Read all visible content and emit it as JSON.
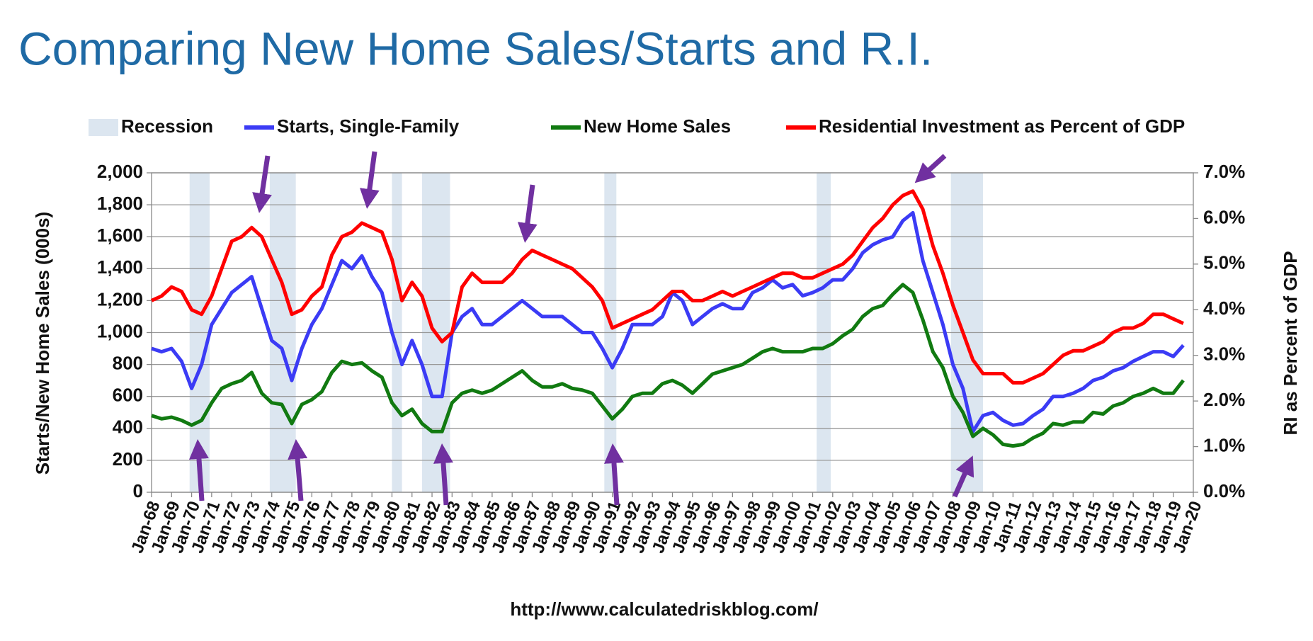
{
  "chart_data": {
    "type": "line",
    "title": "Comparing New Home Sales/Starts and R.I.",
    "ylabel": "Starts/New Home Sales (000s)",
    "y2label": "RI as Percent of GDP",
    "source": "http://www.calculatedriskblog.com/",
    "recession_name": "Recession",
    "recession_color": "#dce6f0",
    "recessions": [
      [
        1969.9,
        1970.9
      ],
      [
        1973.9,
        1975.2
      ],
      [
        1980.0,
        1980.5
      ],
      [
        1981.5,
        1982.9
      ],
      [
        1990.6,
        1991.2
      ],
      [
        2001.2,
        2001.9
      ],
      [
        2007.9,
        2009.5
      ]
    ],
    "xlim": [
      1968,
      2020
    ],
    "xticks": [
      {
        "value": 1968,
        "label": "Jan-68"
      },
      {
        "value": 1969,
        "label": "Jan-69"
      },
      {
        "value": 1970,
        "label": "Jan-70"
      },
      {
        "value": 1971,
        "label": "Jan-71"
      },
      {
        "value": 1972,
        "label": "Jan-72"
      },
      {
        "value": 1973,
        "label": "Jan-73"
      },
      {
        "value": 1974,
        "label": "Jan-74"
      },
      {
        "value": 1975,
        "label": "Jan-75"
      },
      {
        "value": 1976,
        "label": "Jan-76"
      },
      {
        "value": 1977,
        "label": "Jan-77"
      },
      {
        "value": 1978,
        "label": "Jan-78"
      },
      {
        "value": 1979,
        "label": "Jan-79"
      },
      {
        "value": 1980,
        "label": "Jan-80"
      },
      {
        "value": 1981,
        "label": "Jan-81"
      },
      {
        "value": 1982,
        "label": "Jan-82"
      },
      {
        "value": 1983,
        "label": "Jan-83"
      },
      {
        "value": 1984,
        "label": "Jan-84"
      },
      {
        "value": 1985,
        "label": "Jan-85"
      },
      {
        "value": 1986,
        "label": "Jan-86"
      },
      {
        "value": 1987,
        "label": "Jan-87"
      },
      {
        "value": 1988,
        "label": "Jan-88"
      },
      {
        "value": 1989,
        "label": "Jan-89"
      },
      {
        "value": 1990,
        "label": "Jan-90"
      },
      {
        "value": 1991,
        "label": "Jan-91"
      },
      {
        "value": 1992,
        "label": "Jan-92"
      },
      {
        "value": 1993,
        "label": "Jan-93"
      },
      {
        "value": 1994,
        "label": "Jan-94"
      },
      {
        "value": 1995,
        "label": "Jan-95"
      },
      {
        "value": 1996,
        "label": "Jan-96"
      },
      {
        "value": 1997,
        "label": "Jan-97"
      },
      {
        "value": 1998,
        "label": "Jan-98"
      },
      {
        "value": 1999,
        "label": "Jan-99"
      },
      {
        "value": 2000,
        "label": "Jan-00"
      },
      {
        "value": 2001,
        "label": "Jan-01"
      },
      {
        "value": 2002,
        "label": "Jan-02"
      },
      {
        "value": 2003,
        "label": "Jan-03"
      },
      {
        "value": 2004,
        "label": "Jan-04"
      },
      {
        "value": 2005,
        "label": "Jan-05"
      },
      {
        "value": 2006,
        "label": "Jan-06"
      },
      {
        "value": 2007,
        "label": "Jan-07"
      },
      {
        "value": 2008,
        "label": "Jan-08"
      },
      {
        "value": 2009,
        "label": "Jan-09"
      },
      {
        "value": 2010,
        "label": "Jan-10"
      },
      {
        "value": 2011,
        "label": "Jan-11"
      },
      {
        "value": 2012,
        "label": "Jan-12"
      },
      {
        "value": 2013,
        "label": "Jan-13"
      },
      {
        "value": 2014,
        "label": "Jan-14"
      },
      {
        "value": 2015,
        "label": "Jan-15"
      },
      {
        "value": 2016,
        "label": "Jan-16"
      },
      {
        "value": 2017,
        "label": "Jan-17"
      },
      {
        "value": 2018,
        "label": "Jan-18"
      },
      {
        "value": 2019,
        "label": "Jan-19"
      },
      {
        "value": 2020,
        "label": "Jan-20"
      }
    ],
    "ylim": [
      0,
      2000
    ],
    "yticks": [
      0,
      200,
      400,
      600,
      800,
      {
        "value": 1000,
        "label": "1,000"
      },
      {
        "value": 1200,
        "label": "1,200"
      },
      {
        "value": 1400,
        "label": "1,400"
      },
      {
        "value": 1600,
        "label": "1,600"
      },
      {
        "value": 1800,
        "label": "1,800"
      },
      {
        "value": 2000,
        "label": "2,000"
      }
    ],
    "y2lim": [
      0,
      7
    ],
    "y2ticks": [
      {
        "value": 0,
        "label": "0.0%"
      },
      {
        "value": 1,
        "label": "1.0%"
      },
      {
        "value": 2,
        "label": "2.0%"
      },
      {
        "value": 3,
        "label": "3.0%"
      },
      {
        "value": 4,
        "label": "4.0%"
      },
      {
        "value": 5,
        "label": "5.0%"
      },
      {
        "value": 6,
        "label": "6.0%"
      },
      {
        "value": 7,
        "label": "7.0%"
      }
    ],
    "grid": true,
    "x": [
      1968.0,
      1968.5,
      1969.0,
      1969.5,
      1970.0,
      1970.5,
      1971.0,
      1971.5,
      1972.0,
      1972.5,
      1973.0,
      1973.5,
      1974.0,
      1974.5,
      1975.0,
      1975.5,
      1976.0,
      1976.5,
      1977.0,
      1977.5,
      1978.0,
      1978.5,
      1979.0,
      1979.5,
      1980.0,
      1980.5,
      1981.0,
      1981.5,
      1982.0,
      1982.5,
      1983.0,
      1983.5,
      1984.0,
      1984.5,
      1985.0,
      1985.5,
      1986.0,
      1986.5,
      1987.0,
      1987.5,
      1988.0,
      1988.5,
      1989.0,
      1989.5,
      1990.0,
      1990.5,
      1991.0,
      1991.5,
      1992.0,
      1992.5,
      1993.0,
      1993.5,
      1994.0,
      1994.5,
      1995.0,
      1995.5,
      1996.0,
      1996.5,
      1997.0,
      1997.5,
      1998.0,
      1998.5,
      1999.0,
      1999.5,
      2000.0,
      2000.5,
      2001.0,
      2001.5,
      2002.0,
      2002.5,
      2003.0,
      2003.5,
      2004.0,
      2004.5,
      2005.0,
      2005.5,
      2006.0,
      2006.5,
      2007.0,
      2007.5,
      2008.0,
      2008.5,
      2009.0,
      2009.5,
      2010.0,
      2010.5,
      2011.0,
      2011.5,
      2012.0,
      2012.5,
      2013.0,
      2013.5,
      2014.0,
      2014.5,
      2015.0,
      2015.5,
      2016.0,
      2016.5,
      2017.0,
      2017.5,
      2018.0,
      2018.5,
      2019.0,
      2019.5
    ],
    "series": [
      {
        "name": "Starts, Single-Family",
        "color": "#3b3bf5",
        "values": [
          900,
          880,
          900,
          820,
          650,
          800,
          1050,
          1150,
          1250,
          1300,
          1350,
          1150,
          950,
          900,
          700,
          900,
          1050,
          1150,
          1300,
          1450,
          1400,
          1480,
          1350,
          1250,
          1000,
          800,
          950,
          800,
          600,
          600,
          1000,
          1100,
          1150,
          1050,
          1050,
          1100,
          1150,
          1200,
          1150,
          1100,
          1100,
          1100,
          1050,
          1000,
          1000,
          900,
          780,
          900,
          1050,
          1050,
          1050,
          1100,
          1250,
          1200,
          1050,
          1100,
          1150,
          1180,
          1150,
          1150,
          1250,
          1280,
          1330,
          1280,
          1300,
          1230,
          1250,
          1280,
          1330,
          1330,
          1400,
          1500,
          1550,
          1580,
          1600,
          1700,
          1750,
          1450,
          1250,
          1050,
          800,
          650,
          380,
          480,
          500,
          450,
          420,
          430,
          480,
          520,
          600,
          600,
          620,
          650,
          700,
          720,
          760,
          780,
          820,
          850,
          880,
          880,
          850,
          920
        ]
      },
      {
        "name": "New Home Sales",
        "color": "#117a11",
        "values": [
          480,
          460,
          470,
          450,
          420,
          450,
          560,
          650,
          680,
          700,
          750,
          620,
          560,
          550,
          430,
          550,
          580,
          630,
          750,
          820,
          800,
          810,
          760,
          720,
          560,
          480,
          520,
          430,
          380,
          380,
          560,
          620,
          640,
          620,
          640,
          680,
          720,
          760,
          700,
          660,
          660,
          680,
          650,
          640,
          620,
          540,
          460,
          520,
          600,
          620,
          620,
          680,
          700,
          670,
          620,
          680,
          740,
          760,
          780,
          800,
          840,
          880,
          900,
          880,
          880,
          880,
          900,
          900,
          930,
          980,
          1020,
          1100,
          1150,
          1170,
          1240,
          1300,
          1250,
          1080,
          880,
          780,
          600,
          500,
          350,
          400,
          360,
          300,
          290,
          300,
          340,
          370,
          430,
          420,
          440,
          440,
          500,
          490,
          540,
          560,
          600,
          620,
          650,
          620,
          620,
          700
        ]
      },
      {
        "name": "Residential Investment as Percent of GDP",
        "color": "#ff0000",
        "axis": "y2",
        "values": [
          4.2,
          4.3,
          4.5,
          4.4,
          4.0,
          3.9,
          4.3,
          4.9,
          5.5,
          5.6,
          5.8,
          5.6,
          5.1,
          4.6,
          3.9,
          4.0,
          4.3,
          4.5,
          5.2,
          5.6,
          5.7,
          5.9,
          5.8,
          5.7,
          5.1,
          4.2,
          4.6,
          4.3,
          3.6,
          3.3,
          3.5,
          4.5,
          4.8,
          4.6,
          4.6,
          4.6,
          4.8,
          5.1,
          5.3,
          5.2,
          5.1,
          5.0,
          4.9,
          4.7,
          4.5,
          4.2,
          3.6,
          3.7,
          3.8,
          3.9,
          4.0,
          4.2,
          4.4,
          4.4,
          4.2,
          4.2,
          4.3,
          4.4,
          4.3,
          4.4,
          4.5,
          4.6,
          4.7,
          4.8,
          4.8,
          4.7,
          4.7,
          4.8,
          4.9,
          5.0,
          5.2,
          5.5,
          5.8,
          6.0,
          6.3,
          6.5,
          6.6,
          6.2,
          5.4,
          4.8,
          4.1,
          3.5,
          2.9,
          2.6,
          2.6,
          2.6,
          2.4,
          2.4,
          2.5,
          2.6,
          2.8,
          3.0,
          3.1,
          3.1,
          3.2,
          3.3,
          3.5,
          3.6,
          3.6,
          3.7,
          3.9,
          3.9,
          3.8,
          3.7
        ]
      }
    ]
  }
}
